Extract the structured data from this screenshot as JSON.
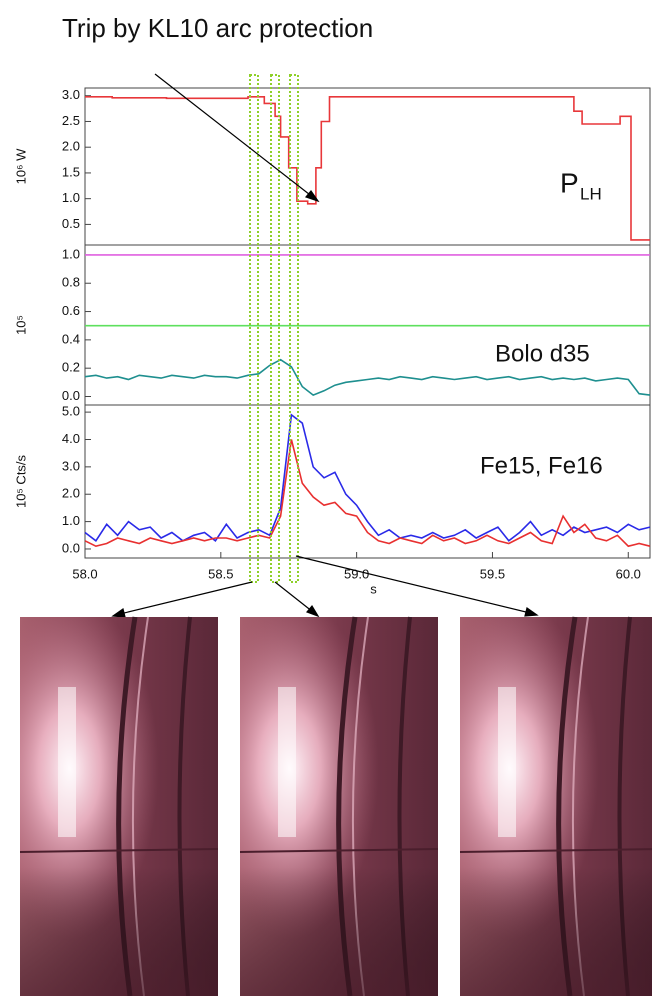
{
  "figure": {
    "title": "Trip by KL10 arc protection"
  },
  "chart_data": [
    {
      "type": "line",
      "ylabel": "10⁶  W",
      "annotation": "P",
      "annotation_sub": "LH",
      "xlim": [
        58.0,
        60.08
      ],
      "ylim": [
        0.1,
        3.15
      ],
      "yticks": [
        0.5,
        {
          "value": 1,
          "label": "1.0"
        },
        1.5,
        {
          "value": 2,
          "label": "2.0"
        },
        2.5,
        {
          "value": 3,
          "label": "3.0"
        }
      ],
      "series": [
        {
          "color": "#e8373a",
          "x": [
            58.0,
            58.1,
            58.1,
            58.3,
            58.3,
            58.6,
            58.6,
            58.66,
            58.66,
            58.7,
            58.7,
            58.72,
            58.72,
            58.75,
            58.75,
            58.78,
            58.78,
            58.82,
            58.82,
            58.85,
            58.85,
            58.87,
            58.87,
            58.9,
            58.9,
            59.8,
            59.8,
            59.83,
            59.83,
            59.97,
            59.97,
            60.01,
            60.01,
            60.08
          ],
          "values": [
            2.98,
            2.98,
            2.96,
            2.96,
            2.95,
            2.95,
            2.98,
            2.98,
            2.85,
            2.85,
            2.6,
            2.6,
            2.2,
            2.2,
            1.6,
            1.6,
            0.95,
            0.95,
            0.9,
            0.9,
            1.6,
            1.6,
            2.5,
            2.5,
            2.98,
            2.98,
            2.7,
            2.7,
            2.45,
            2.45,
            2.6,
            2.6,
            0.2,
            0.2
          ]
        }
      ]
    },
    {
      "type": "line",
      "ylabel": "10⁵",
      "annotation": "Bolo d35",
      "xlim": [
        58.0,
        60.08
      ],
      "ylim": [
        -0.06,
        1.07
      ],
      "yticks": [
        {
          "value": 0,
          "label": "0.0"
        },
        0.2,
        0.4,
        0.6,
        0.8,
        {
          "value": 1,
          "label": "1.0"
        }
      ],
      "x": [
        58.0,
        58.04,
        58.08,
        58.12,
        58.16,
        58.2,
        58.24,
        58.28,
        58.32,
        58.36,
        58.4,
        58.44,
        58.48,
        58.52,
        58.56,
        58.6,
        58.64,
        58.68,
        58.72,
        58.76,
        58.8,
        58.84,
        58.88,
        58.92,
        58.96,
        59.0,
        59.04,
        59.08,
        59.12,
        59.16,
        59.2,
        59.24,
        59.28,
        59.32,
        59.36,
        59.4,
        59.44,
        59.48,
        59.52,
        59.56,
        59.6,
        59.64,
        59.68,
        59.72,
        59.76,
        59.8,
        59.84,
        59.88,
        59.92,
        59.96,
        60.0,
        60.04,
        60.08
      ],
      "series": [
        {
          "color": "#e060e0",
          "x": [
            58.0,
            60.08
          ],
          "values": [
            1.0,
            1.0
          ]
        },
        {
          "color": "#5ee05e",
          "x": [
            58.0,
            60.08
          ],
          "values": [
            0.5,
            0.5
          ]
        },
        {
          "color": "#1e8f8f",
          "values": [
            0.14,
            0.15,
            0.13,
            0.14,
            0.12,
            0.15,
            0.14,
            0.13,
            0.15,
            0.14,
            0.13,
            0.15,
            0.14,
            0.14,
            0.13,
            0.15,
            0.16,
            0.22,
            0.26,
            0.21,
            0.07,
            0.01,
            0.04,
            0.08,
            0.1,
            0.11,
            0.12,
            0.13,
            0.12,
            0.14,
            0.13,
            0.12,
            0.14,
            0.13,
            0.12,
            0.13,
            0.14,
            0.12,
            0.13,
            0.14,
            0.12,
            0.13,
            0.14,
            0.12,
            0.13,
            0.12,
            0.13,
            0.11,
            0.12,
            0.13,
            0.12,
            0.02,
            0.01
          ]
        }
      ]
    },
    {
      "type": "line",
      "ylabel": "10⁵  Cts/s",
      "annotation": "Fe15, Fe16",
      "xlabel": "s",
      "xlim": [
        58.0,
        60.08
      ],
      "ylim": [
        -0.33,
        5.26
      ],
      "xticks": [
        {
          "value": 58,
          "label": "58.0"
        },
        58.5,
        {
          "value": 59,
          "label": "59.0"
        },
        59.5,
        {
          "value": 60,
          "label": "60.0"
        }
      ],
      "yticks": [
        {
          "value": 0,
          "label": "0.0"
        },
        {
          "value": 1,
          "label": "1.0"
        },
        {
          "value": 2,
          "label": "2.0"
        },
        {
          "value": 3,
          "label": "3.0"
        },
        {
          "value": 4,
          "label": "4.0"
        },
        {
          "value": 5,
          "label": "5.0"
        }
      ],
      "x": [
        58.0,
        58.04,
        58.08,
        58.12,
        58.16,
        58.2,
        58.24,
        58.28,
        58.32,
        58.36,
        58.4,
        58.44,
        58.48,
        58.52,
        58.56,
        58.6,
        58.64,
        58.68,
        58.72,
        58.76,
        58.8,
        58.84,
        58.88,
        58.92,
        58.96,
        59.0,
        59.04,
        59.08,
        59.12,
        59.16,
        59.2,
        59.24,
        59.28,
        59.32,
        59.36,
        59.4,
        59.44,
        59.48,
        59.52,
        59.56,
        59.6,
        59.64,
        59.68,
        59.72,
        59.76,
        59.8,
        59.84,
        59.88,
        59.92,
        59.96,
        60.0,
        60.04,
        60.08
      ],
      "series": [
        {
          "color": "#2a2ae8",
          "values": [
            0.6,
            0.3,
            0.9,
            0.5,
            1.0,
            0.7,
            0.8,
            0.4,
            0.6,
            0.3,
            0.5,
            0.6,
            0.3,
            0.9,
            0.4,
            0.6,
            0.7,
            0.5,
            1.5,
            4.9,
            4.6,
            3.0,
            2.6,
            2.8,
            2.0,
            1.6,
            1.0,
            0.5,
            0.7,
            0.4,
            0.5,
            0.4,
            0.6,
            0.4,
            0.5,
            0.7,
            0.4,
            0.6,
            0.8,
            0.3,
            0.6,
            1.0,
            0.5,
            0.7,
            0.5,
            0.8,
            0.6,
            0.7,
            0.8,
            0.6,
            0.9,
            0.7,
            0.8
          ]
        },
        {
          "color": "#e83030",
          "values": [
            0.3,
            0.1,
            0.2,
            0.4,
            0.3,
            0.2,
            0.4,
            0.3,
            0.2,
            0.3,
            0.4,
            0.3,
            0.4,
            0.4,
            0.3,
            0.4,
            0.5,
            0.4,
            1.2,
            4.0,
            2.4,
            1.9,
            1.6,
            1.7,
            1.3,
            1.2,
            0.6,
            0.3,
            0.2,
            0.4,
            0.3,
            0.2,
            0.5,
            0.3,
            0.4,
            0.2,
            0.3,
            0.5,
            0.3,
            0.2,
            0.4,
            0.6,
            0.3,
            0.2,
            1.2,
            0.6,
            0.9,
            0.4,
            0.3,
            0.5,
            0.1,
            0.2,
            0.1
          ]
        }
      ]
    }
  ]
}
